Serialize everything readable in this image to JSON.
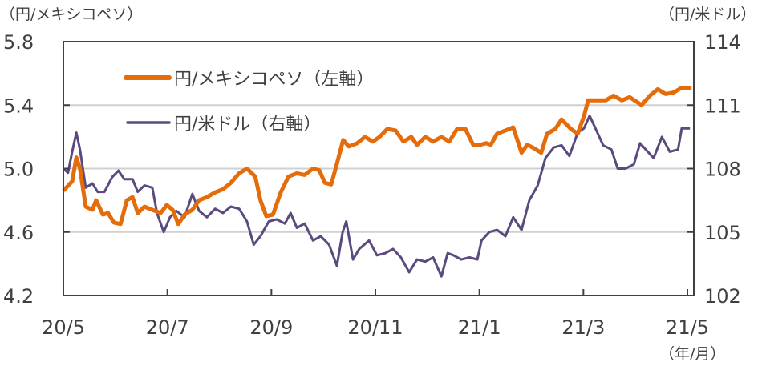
{
  "chart_data": {
    "type": "line",
    "left_axis_label": "（円/メキシコペソ）",
    "right_axis_label": "（円/米ドル）",
    "x_axis_unit_label": "（年/月）",
    "x_ticks": [
      "20/5",
      "20/7",
      "20/9",
      "20/11",
      "21/1",
      "21/3",
      "21/5"
    ],
    "x_range_months": [
      0,
      12
    ],
    "left_ylim": [
      4.2,
      5.8
    ],
    "left_ticks": [
      "4.2",
      "4.6",
      "5.0",
      "5.4",
      "5.8"
    ],
    "right_ylim": [
      102,
      114
    ],
    "right_ticks": [
      "102",
      "105",
      "108",
      "111",
      "114"
    ],
    "grid": true,
    "legend_placement": "top-left",
    "series": [
      {
        "name": "円/メキシコペソ（左軸）",
        "axis": "left",
        "color": "#E46C0A",
        "points": [
          [
            0,
            4.86
          ],
          [
            0.17,
            4.92
          ],
          [
            0.25,
            5.07
          ],
          [
            0.32,
            5.0
          ],
          [
            0.43,
            4.76
          ],
          [
            0.56,
            4.74
          ],
          [
            0.63,
            4.8
          ],
          [
            0.76,
            4.71
          ],
          [
            0.86,
            4.72
          ],
          [
            0.97,
            4.66
          ],
          [
            1.1,
            4.65
          ],
          [
            1.22,
            4.8
          ],
          [
            1.33,
            4.82
          ],
          [
            1.43,
            4.72
          ],
          [
            1.56,
            4.76
          ],
          [
            1.71,
            4.74
          ],
          [
            1.87,
            4.72
          ],
          [
            1.99,
            4.77
          ],
          [
            2.1,
            4.74
          ],
          [
            2.21,
            4.65
          ],
          [
            2.33,
            4.71
          ],
          [
            2.48,
            4.74
          ],
          [
            2.61,
            4.8
          ],
          [
            2.76,
            4.82
          ],
          [
            2.92,
            4.85
          ],
          [
            3.07,
            4.87
          ],
          [
            3.22,
            4.91
          ],
          [
            3.38,
            4.97
          ],
          [
            3.53,
            5.0
          ],
          [
            3.69,
            4.95
          ],
          [
            3.79,
            4.8
          ],
          [
            3.9,
            4.7
          ],
          [
            4.03,
            4.71
          ],
          [
            4.18,
            4.85
          ],
          [
            4.33,
            4.95
          ],
          [
            4.49,
            4.97
          ],
          [
            4.64,
            4.96
          ],
          [
            4.8,
            5.0
          ],
          [
            4.92,
            4.99
          ],
          [
            5.03,
            4.91
          ],
          [
            5.15,
            4.9
          ],
          [
            5.26,
            5.03
          ],
          [
            5.38,
            5.18
          ],
          [
            5.49,
            5.14
          ],
          [
            5.65,
            5.16
          ],
          [
            5.8,
            5.2
          ],
          [
            5.95,
            5.17
          ],
          [
            6.08,
            5.2
          ],
          [
            6.23,
            5.25
          ],
          [
            6.39,
            5.24
          ],
          [
            6.54,
            5.17
          ],
          [
            6.69,
            5.2
          ],
          [
            6.8,
            5.15
          ],
          [
            6.96,
            5.2
          ],
          [
            7.11,
            5.17
          ],
          [
            7.27,
            5.2
          ],
          [
            7.42,
            5.17
          ],
          [
            7.57,
            5.25
          ],
          [
            7.73,
            5.25
          ],
          [
            7.88,
            5.15
          ],
          [
            8.01,
            5.15
          ],
          [
            8.13,
            5.16
          ],
          [
            8.22,
            5.15
          ],
          [
            8.34,
            5.22
          ],
          [
            8.5,
            5.24
          ],
          [
            8.65,
            5.26
          ],
          [
            8.81,
            5.1
          ],
          [
            8.92,
            5.15
          ],
          [
            9.04,
            5.13
          ],
          [
            9.19,
            5.1
          ],
          [
            9.3,
            5.22
          ],
          [
            9.46,
            5.25
          ],
          [
            9.58,
            5.31
          ],
          [
            9.76,
            5.25
          ],
          [
            9.89,
            5.22
          ],
          [
            10.01,
            5.33
          ],
          [
            10.09,
            5.43
          ],
          [
            10.27,
            5.43
          ],
          [
            10.43,
            5.43
          ],
          [
            10.58,
            5.46
          ],
          [
            10.74,
            5.43
          ],
          [
            10.89,
            5.45
          ],
          [
            11.12,
            5.4
          ],
          [
            11.28,
            5.46
          ],
          [
            11.43,
            5.5
          ],
          [
            11.58,
            5.47
          ],
          [
            11.74,
            5.48
          ],
          [
            11.89,
            5.51
          ],
          [
            12.08,
            5.51
          ]
        ]
      },
      {
        "name": "円/米ドル（右軸）",
        "axis": "right",
        "color": "#5B4A7E",
        "points": [
          [
            0,
            108.0
          ],
          [
            0.09,
            107.8
          ],
          [
            0.17,
            108.8
          ],
          [
            0.25,
            109.7
          ],
          [
            0.32,
            108.9
          ],
          [
            0.43,
            107.1
          ],
          [
            0.56,
            107.3
          ],
          [
            0.66,
            106.9
          ],
          [
            0.79,
            106.9
          ],
          [
            0.94,
            107.6
          ],
          [
            1.06,
            107.9
          ],
          [
            1.17,
            107.5
          ],
          [
            1.33,
            107.5
          ],
          [
            1.43,
            106.9
          ],
          [
            1.56,
            107.2
          ],
          [
            1.71,
            107.1
          ],
          [
            1.8,
            105.9
          ],
          [
            1.93,
            105.0
          ],
          [
            2.05,
            105.7
          ],
          [
            2.17,
            106.0
          ],
          [
            2.33,
            105.7
          ],
          [
            2.48,
            106.8
          ],
          [
            2.61,
            106.0
          ],
          [
            2.76,
            105.7
          ],
          [
            2.92,
            106.1
          ],
          [
            3.07,
            105.9
          ],
          [
            3.22,
            106.2
          ],
          [
            3.38,
            106.1
          ],
          [
            3.53,
            105.5
          ],
          [
            3.66,
            104.4
          ],
          [
            3.79,
            104.8
          ],
          [
            3.95,
            105.5
          ],
          [
            4.1,
            105.6
          ],
          [
            4.26,
            105.4
          ],
          [
            4.37,
            105.9
          ],
          [
            4.49,
            105.2
          ],
          [
            4.64,
            105.4
          ],
          [
            4.8,
            104.6
          ],
          [
            4.95,
            104.8
          ],
          [
            5.11,
            104.4
          ],
          [
            5.26,
            103.4
          ],
          [
            5.37,
            105.0
          ],
          [
            5.44,
            105.5
          ],
          [
            5.57,
            103.7
          ],
          [
            5.69,
            104.2
          ],
          [
            5.88,
            104.6
          ],
          [
            6.03,
            103.9
          ],
          [
            6.19,
            104.0
          ],
          [
            6.34,
            104.2
          ],
          [
            6.49,
            103.8
          ],
          [
            6.65,
            103.1
          ],
          [
            6.8,
            103.7
          ],
          [
            6.96,
            103.6
          ],
          [
            7.11,
            103.8
          ],
          [
            7.27,
            102.9
          ],
          [
            7.39,
            104.0
          ],
          [
            7.5,
            103.9
          ],
          [
            7.65,
            103.7
          ],
          [
            7.81,
            103.8
          ],
          [
            7.96,
            103.7
          ],
          [
            8.04,
            104.6
          ],
          [
            8.19,
            105.0
          ],
          [
            8.34,
            105.1
          ],
          [
            8.5,
            104.8
          ],
          [
            8.65,
            105.7
          ],
          [
            8.81,
            105.1
          ],
          [
            8.96,
            106.5
          ],
          [
            9.12,
            107.2
          ],
          [
            9.27,
            108.5
          ],
          [
            9.43,
            109.0
          ],
          [
            9.58,
            109.1
          ],
          [
            9.73,
            108.6
          ],
          [
            9.89,
            109.7
          ],
          [
            10.01,
            109.9
          ],
          [
            10.12,
            110.5
          ],
          [
            10.27,
            109.7
          ],
          [
            10.38,
            109.1
          ],
          [
            10.54,
            108.9
          ],
          [
            10.66,
            108.0
          ],
          [
            10.81,
            108.0
          ],
          [
            10.97,
            108.2
          ],
          [
            11.09,
            109.2
          ],
          [
            11.2,
            108.9
          ],
          [
            11.35,
            108.5
          ],
          [
            11.51,
            109.5
          ],
          [
            11.66,
            108.8
          ],
          [
            11.82,
            108.9
          ],
          [
            11.89,
            109.9
          ],
          [
            12.05,
            109.9
          ]
        ]
      }
    ]
  }
}
